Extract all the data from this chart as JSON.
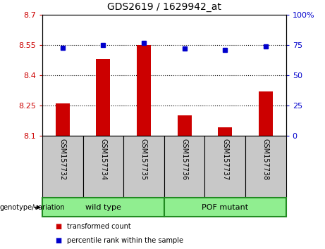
{
  "title": "GDS2619 / 1629942_at",
  "samples": [
    "GSM157732",
    "GSM157734",
    "GSM157735",
    "GSM157736",
    "GSM157737",
    "GSM157738"
  ],
  "bar_values": [
    8.26,
    8.48,
    8.55,
    8.2,
    8.14,
    8.32
  ],
  "percentile_values": [
    73,
    75,
    77,
    72,
    71,
    74
  ],
  "bar_bottom": 8.1,
  "ylim_left": [
    8.1,
    8.7
  ],
  "ylim_right": [
    0,
    100
  ],
  "yticks_left": [
    8.1,
    8.25,
    8.4,
    8.55,
    8.7
  ],
  "yticks_right": [
    0,
    25,
    50,
    75,
    100
  ],
  "ytick_labels_left": [
    "8.1",
    "8.25",
    "8.4",
    "8.55",
    "8.7"
  ],
  "ytick_labels_right": [
    "0",
    "25",
    "50",
    "75",
    "100%"
  ],
  "bar_color": "#cc0000",
  "dot_color": "#0000cc",
  "group_configs": [
    {
      "start": 0,
      "end": 2,
      "label": "wild type"
    },
    {
      "start": 3,
      "end": 5,
      "label": "POF mutant"
    }
  ],
  "genotype_label": "genotype/variation",
  "legend_items": [
    {
      "label": "transformed count",
      "color": "#cc0000"
    },
    {
      "label": "percentile rank within the sample",
      "color": "#0000cc"
    }
  ],
  "xlabel_area_color": "#c8c8c8",
  "group_area_color": "#90ee90",
  "group_border_color": "#228B22",
  "bar_width": 0.35
}
